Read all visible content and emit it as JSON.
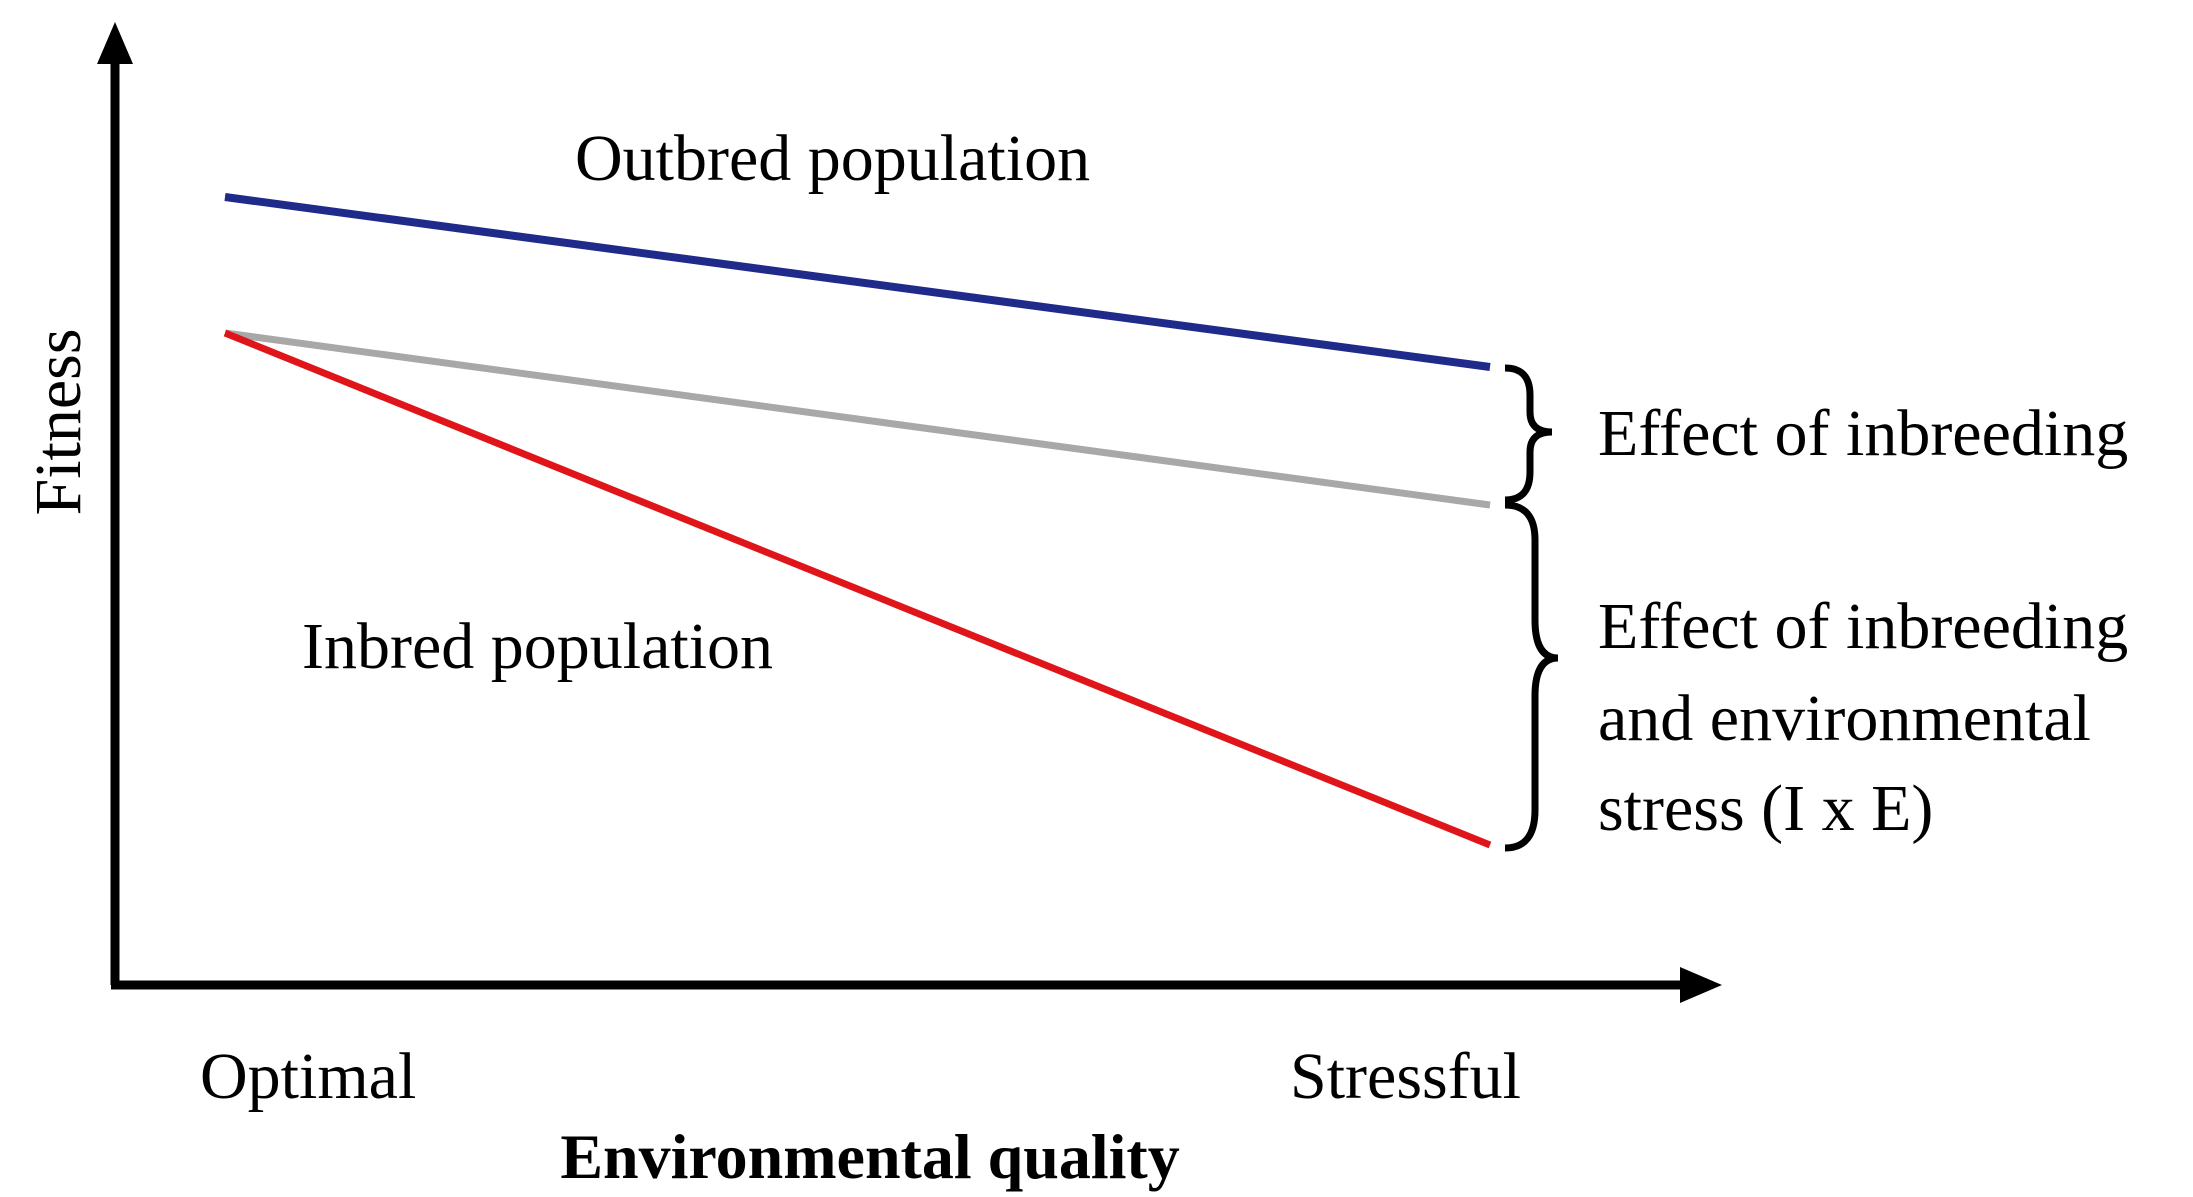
{
  "axes": {
    "y_label": "Fitness",
    "x_label": "Environmental quality",
    "x_tick_left": "Optimal",
    "x_tick_right": "Stressful"
  },
  "lines": {
    "outbred": {
      "label": "Outbred population",
      "color": "#1f2a8a"
    },
    "inbred": {
      "label": "Inbred population",
      "color": "#e0151a"
    },
    "reference": {
      "color": "#a8a8a8"
    }
  },
  "braces": {
    "upper_label": "Effect of inbreeding",
    "lower_label_1": "Effect of inbreeding",
    "lower_label_2": "and environmental",
    "lower_label_3": "stress (I x E)"
  },
  "colors": {
    "axis": "#000000"
  }
}
